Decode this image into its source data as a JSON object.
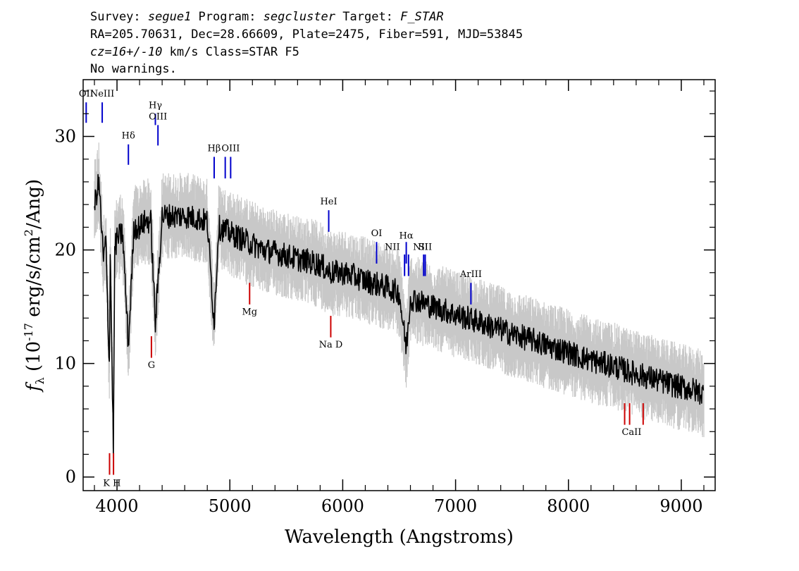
{
  "header": {
    "line1": {
      "survey_label": "Survey: ",
      "survey": "segue1",
      "program_label": " Program: ",
      "program": "segcluster",
      "target_label": " Target: ",
      "target": "F_STAR"
    },
    "line2": "RA=205.70631, Dec=28.66609, Plate=2475, Fiber=591, MJD=53845",
    "line3": {
      "cz": "cz=16+/-10",
      "rest": " km/s Class=STAR F5"
    },
    "line4": "No warnings."
  },
  "chart_data": {
    "type": "line",
    "xlabel": "Wavelength (Angstroms)",
    "ylabel_parts": {
      "f": "f",
      "sub": "λ",
      "open": " (10",
      "exp": "-17",
      "mid": " erg/s/cm",
      "exp2": "2",
      "close": "/Ang)"
    },
    "xlim": [
      3700,
      9300
    ],
    "ylim": [
      -1.2,
      35
    ],
    "x_ticks": [
      4000,
      5000,
      6000,
      7000,
      8000,
      9000
    ],
    "x_tick_labels": [
      "4000",
      "5000",
      "6000",
      "7000",
      "8000",
      "9000"
    ],
    "y_ticks": [
      0,
      10,
      20,
      30
    ],
    "y_tick_labels": [
      "0",
      "10",
      "20",
      "30"
    ],
    "series": [
      {
        "role": "spectrum",
        "color": "#000000",
        "x": [
          3800,
          3840,
          3880,
          3900,
          3933,
          3940,
          3968,
          3980,
          4000,
          4050,
          4101,
          4150,
          4200,
          4250,
          4300,
          4340,
          4400,
          4500,
          4600,
          4700,
          4800,
          4861,
          4900,
          5000,
          5100,
          5200,
          5300,
          5400,
          5500,
          5600,
          5700,
          5800,
          5893,
          6000,
          6100,
          6200,
          6300,
          6400,
          6500,
          6563,
          6600,
          6700,
          6800,
          6900,
          7000,
          7100,
          7200,
          7300,
          7400,
          7500,
          7600,
          7700,
          7800,
          7900,
          8000,
          8100,
          8200,
          8300,
          8400,
          8500,
          8600,
          8700,
          8800,
          8900,
          9000,
          9100,
          9200
        ],
        "y": [
          24,
          26,
          19,
          21,
          9.5,
          20,
          2.5,
          20,
          21,
          21.5,
          11.5,
          22,
          22,
          22.5,
          22.5,
          13.5,
          23,
          23,
          23,
          22.8,
          22.5,
          13.5,
          22,
          21.5,
          21,
          20.5,
          20,
          19.8,
          19.5,
          19.2,
          19,
          18.7,
          18,
          18,
          17.7,
          17.3,
          17,
          16.7,
          16.2,
          11.3,
          15.8,
          15.4,
          15,
          14.7,
          14.3,
          14,
          13.7,
          13.3,
          13,
          12.6,
          12.3,
          12,
          11.6,
          11.3,
          11,
          10.6,
          10.3,
          10,
          9.8,
          9.4,
          9.1,
          8.8,
          8.5,
          8.2,
          7.9,
          7.7,
          7.3
        ]
      }
    ],
    "error_band": {
      "color": "#c8c8c8",
      "amplitude": 1.6
    },
    "emission_lines": [
      {
        "label": "OII",
        "x": 3727,
        "y_top": 31.2,
        "y_bottom": 33
      },
      {
        "label": "NeIII",
        "x": 3869,
        "y_top": 31.2,
        "y_bottom": 33
      },
      {
        "label": "Hγ",
        "x": 4340,
        "y_top": 31,
        "y_bottom": 32
      },
      {
        "label": "Hδ",
        "x": 4101,
        "y_top": 27.5,
        "y_bottom": 29.3
      },
      {
        "label": "OIII",
        "x": 4363,
        "y_top": 29.2,
        "y_bottom": 31
      },
      {
        "label": "Hβ",
        "x": 4861,
        "y_top": 26.3,
        "y_bottom": 28.2
      },
      {
        "label": "OIII",
        "x": 4959,
        "y_top": 26.3,
        "y_bottom": 28.2
      },
      {
        "label": "OIII",
        "x": 5007,
        "y_top": 26.3,
        "y_bottom": 28.2
      },
      {
        "label": "HeI",
        "x": 5876,
        "y_top": 21.6,
        "y_bottom": 23.5
      },
      {
        "label": "OI",
        "x": 6300,
        "y_top": 18.8,
        "y_bottom": 20.7
      },
      {
        "label": "NII",
        "x": 6548,
        "y_top": 17.7,
        "y_bottom": 19.6
      },
      {
        "label": "Hα",
        "x": 6563,
        "y_top": 18.8,
        "y_bottom": 20.7
      },
      {
        "label": "NII",
        "x": 6583,
        "y_top": 17.7,
        "y_bottom": 19.6
      },
      {
        "label": "SII",
        "x": 6717,
        "y_top": 17.7,
        "y_bottom": 19.6
      },
      {
        "label": "SII",
        "x": 6731,
        "y_top": 17.7,
        "y_bottom": 19.6
      },
      {
        "label": "ArIII",
        "x": 7136,
        "y_top": 15.2,
        "y_bottom": 17.1
      }
    ],
    "absorption_lines": [
      {
        "label": "K",
        "x": 3934,
        "y_top": 2.1,
        "y_bottom": 0.2
      },
      {
        "label": "H",
        "x": 3969,
        "y_top": 2.1,
        "y_bottom": 0.2
      },
      {
        "label": "G",
        "x": 4305,
        "y_top": 12.4,
        "y_bottom": 10.5
      },
      {
        "label": "Mg",
        "x": 5175,
        "y_top": 17.1,
        "y_bottom": 15.2
      },
      {
        "label": "Na",
        "x": 5894,
        "y_top": 14.2,
        "y_bottom": 12.3
      },
      {
        "label": "CaII",
        "x": 8498,
        "y_top": 6.5,
        "y_bottom": 4.6
      },
      {
        "label": "CaII",
        "x": 8542,
        "y_top": 6.5,
        "y_bottom": 4.6
      },
      {
        "label": "CaII",
        "x": 8662,
        "y_top": 6.5,
        "y_bottom": 4.6
      }
    ],
    "line_label_texts": {
      "emission": [
        {
          "text": "OII",
          "x": 3727,
          "y": 33.5
        },
        {
          "text": "NeIII",
          "x": 3869,
          "y": 33.5
        },
        {
          "text": "Hγ",
          "x": 4340,
          "y": 32.5
        },
        {
          "text": "Hδ",
          "x": 4101,
          "y": 29.8
        },
        {
          "text": "OIII",
          "x": 4363,
          "y": 31.5
        },
        {
          "text": "Hβ",
          "x": 4861,
          "y": 28.7
        },
        {
          "text": "OIII",
          "x": 5007,
          "y": 28.7
        },
        {
          "text": "HeI",
          "x": 5876,
          "y": 24
        },
        {
          "text": "OI",
          "x": 6300,
          "y": 21.2
        },
        {
          "text": "NII",
          "x": 6440,
          "y": 20
        },
        {
          "text": "Hα",
          "x": 6563,
          "y": 21
        },
        {
          "text": "NII",
          "x": 6690,
          "y": 20
        },
        {
          "text": "SII",
          "x": 6731,
          "y": 20
        },
        {
          "text": "ArIII",
          "x": 7136,
          "y": 17.6
        }
      ],
      "absorption": [
        {
          "text": "K H",
          "x": 3955,
          "y": -0.8
        },
        {
          "text": "G",
          "x": 4305,
          "y": 9.6
        },
        {
          "text": "Mg",
          "x": 5175,
          "y": 14.3
        },
        {
          "text": "Na  D",
          "x": 5894,
          "y": 11.4
        },
        {
          "text": "CaII",
          "x": 8560,
          "y": 3.7
        }
      ]
    },
    "colors": {
      "emission": "#0000cc",
      "absorption": "#cc0000",
      "axes": "#000000"
    }
  }
}
